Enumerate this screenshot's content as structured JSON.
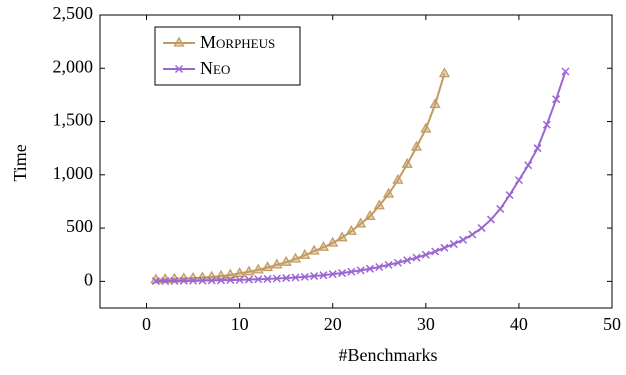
{
  "chart_data": {
    "type": "line",
    "x_label": "#Benchmarks",
    "y_label": "Time",
    "xlim": [
      -5,
      50
    ],
    "xticks": [
      0,
      10,
      20,
      30,
      40,
      50
    ],
    "ylim": [
      -250,
      2500
    ],
    "yticks": [
      0,
      500,
      {
        "value": 1000,
        "label": "1,000"
      },
      {
        "value": 1500,
        "label": "1,500"
      },
      {
        "value": 2000,
        "label": "2,000"
      },
      {
        "value": 2500,
        "label": "2,500"
      }
    ],
    "legend": "upper left",
    "series": [
      {
        "name": "Morpheus",
        "color": "#c39b62",
        "marker": "triangle",
        "x": [
          1,
          2,
          3,
          4,
          5,
          6,
          7,
          8,
          9,
          10,
          11,
          12,
          13,
          14,
          15,
          16,
          17,
          18,
          19,
          20,
          21,
          22,
          23,
          24,
          25,
          26,
          27,
          28,
          29,
          30,
          31,
          32
        ],
        "values": [
          15,
          18,
          22,
          26,
          30,
          35,
          42,
          50,
          60,
          75,
          90,
          108,
          130,
          155,
          180,
          210,
          245,
          285,
          320,
          360,
          410,
          470,
          540,
          610,
          710,
          820,
          950,
          1100,
          1260,
          1430,
          1660,
          1950
        ]
      },
      {
        "name": "Neo",
        "color": "#9a66d2",
        "marker": "cross",
        "x": [
          1,
          2,
          3,
          4,
          5,
          6,
          7,
          8,
          9,
          10,
          11,
          12,
          13,
          14,
          15,
          16,
          17,
          18,
          19,
          20,
          21,
          22,
          23,
          24,
          25,
          26,
          27,
          28,
          29,
          30,
          31,
          32,
          33,
          34,
          35,
          36,
          37,
          38,
          39,
          40,
          41,
          42,
          43,
          44,
          45
        ],
        "values": [
          2,
          3,
          4,
          5,
          6,
          7,
          8,
          10,
          12,
          14,
          17,
          20,
          23,
          27,
          31,
          36,
          42,
          50,
          58,
          68,
          78,
          90,
          103,
          118,
          135,
          155,
          175,
          198,
          222,
          250,
          280,
          315,
          350,
          390,
          440,
          500,
          580,
          680,
          810,
          950,
          1090,
          1250,
          1470,
          1710,
          1970
        ]
      }
    ]
  }
}
